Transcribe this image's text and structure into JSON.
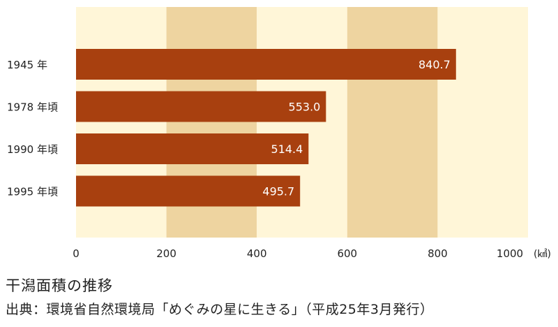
{
  "chart_data": {
    "type": "bar",
    "orientation": "horizontal",
    "categories": [
      "1945 年",
      "1978 年頃",
      "1990 年頃",
      "1995 年頃"
    ],
    "values": [
      840.7,
      553.0,
      514.4,
      495.7
    ],
    "value_labels": [
      "840.7",
      "553.0",
      "514.4",
      "495.7"
    ],
    "xlim": [
      0,
      1000
    ],
    "x_ticks": [
      0,
      200,
      400,
      600,
      800,
      1000
    ],
    "x_tick_labels": [
      "0",
      "200",
      "400",
      "600",
      "800",
      "1000"
    ],
    "x_unit": "(㎢)",
    "title": "干潟面積の推移",
    "source": "出典：環境省自然環境局「めぐみの星に生きる」（平成25年3月発行）",
    "grid": "alternating vertical bands",
    "colors": {
      "bar": "#A8400F",
      "band_light": "#FFF6D8",
      "band_dark": "#EED4A0",
      "label_inside": "#FFFFFF"
    }
  }
}
